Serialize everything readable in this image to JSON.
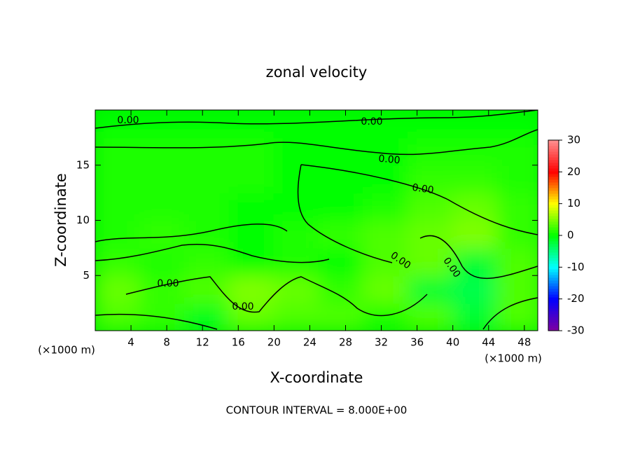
{
  "chart_data": {
    "type": "contour",
    "title": "zonal velocity",
    "x_label": "X-coordinate",
    "y_label": "Z-coordinate",
    "x_unit": "(×1000 m)",
    "y_unit": "(×1000 m)",
    "xlim": [
      0,
      49.5
    ],
    "xticks": [
      4,
      8,
      12,
      16,
      20,
      24,
      28,
      32,
      36,
      40,
      44,
      48
    ],
    "ylim": [
      0,
      20
    ],
    "yticks": [
      5,
      10,
      15
    ],
    "x_edges": [
      0,
      5,
      10,
      15,
      20,
      25,
      30,
      35,
      40,
      45,
      50
    ],
    "z_edges": [
      0,
      2.5,
      5,
      7.5,
      10,
      12.5,
      15,
      17.5,
      20
    ],
    "values": [
      [
        3,
        2,
        -1,
        4,
        3,
        3,
        1,
        3,
        -2,
        3
      ],
      [
        4,
        2,
        3,
        5,
        4,
        2,
        4,
        -2,
        -3,
        3
      ],
      [
        2,
        1,
        2,
        0,
        1,
        0,
        3,
        4,
        -2,
        3
      ],
      [
        1,
        2,
        1,
        0,
        1,
        2,
        3,
        4,
        5,
        2
      ],
      [
        1,
        1,
        1,
        0,
        0,
        0,
        1,
        3,
        4,
        2
      ],
      [
        1,
        1,
        1,
        1,
        0,
        0,
        0,
        2,
        2,
        1
      ],
      [
        1,
        1,
        1,
        1,
        0,
        0,
        0,
        1,
        1,
        1
      ],
      [
        0,
        0,
        0,
        0,
        0,
        0,
        0,
        0,
        0,
        0
      ]
    ],
    "clim": [
      -30,
      30
    ],
    "cticks": [
      -30,
      -20,
      -10,
      0,
      10,
      20,
      30
    ],
    "colormap": [
      "#8000a0",
      "#0000ff",
      "#00ffff",
      "#00ff00",
      "#ffff00",
      "#ff0000",
      "#ff9090"
    ],
    "contour_labels": [
      "0.00",
      "0.00",
      "0.00",
      "0.00",
      "0.00",
      "0.00",
      "0.00",
      "0.00"
    ],
    "footnote": "CONTOUR INTERVAL = 8.000E+00"
  }
}
